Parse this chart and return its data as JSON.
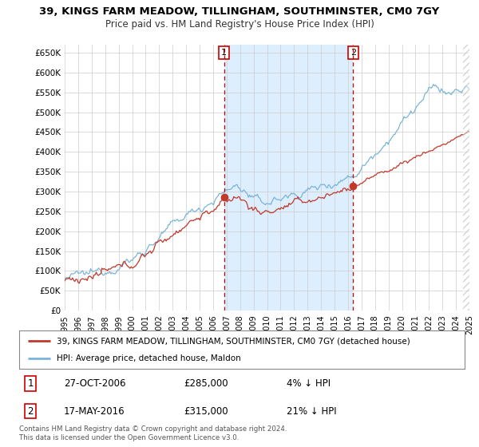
{
  "title_line1": "39, KINGS FARM MEADOW, TILLINGHAM, SOUTHMINSTER, CM0 7GY",
  "title_line2": "Price paid vs. HM Land Registry's House Price Index (HPI)",
  "ylabel_ticks": [
    "£0",
    "£50K",
    "£100K",
    "£150K",
    "£200K",
    "£250K",
    "£300K",
    "£350K",
    "£400K",
    "£450K",
    "£500K",
    "£550K",
    "£600K",
    "£650K"
  ],
  "ytick_values": [
    0,
    50000,
    100000,
    150000,
    200000,
    250000,
    300000,
    350000,
    400000,
    450000,
    500000,
    550000,
    600000,
    650000
  ],
  "hpi_color": "#7ab4d8",
  "price_color": "#c0392b",
  "marker1_date": 2006.82,
  "marker1_price": 285000,
  "marker2_date": 2016.38,
  "marker2_price": 315000,
  "shade_color": "#ddeeff",
  "vline_color": "#cc0000",
  "legend_label1": "39, KINGS FARM MEADOW, TILLINGHAM, SOUTHMINSTER, CM0 7GY (detached house)",
  "legend_label2": "HPI: Average price, detached house, Maldon",
  "annotation1_date": "27-OCT-2006",
  "annotation1_price": "£285,000",
  "annotation1_hpi": "4% ↓ HPI",
  "annotation2_date": "17-MAY-2016",
  "annotation2_price": "£315,000",
  "annotation2_hpi": "21% ↓ HPI",
  "footer": "Contains HM Land Registry data © Crown copyright and database right 2024.\nThis data is licensed under the Open Government Licence v3.0.",
  "xlim_start": 1995,
  "xlim_end": 2025,
  "ylim_min": 0,
  "ylim_max": 670000,
  "grid_color": "#cccccc",
  "bg_color": "#f5f5f5"
}
